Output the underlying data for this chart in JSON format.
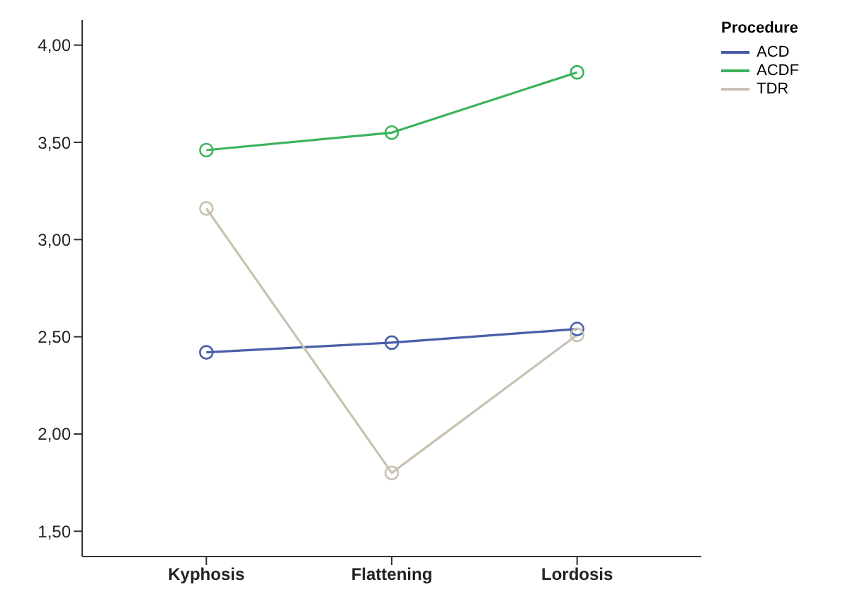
{
  "chart_data": {
    "type": "line",
    "categories": [
      "Kyphosis",
      "Flattening",
      "Lordosis"
    ],
    "series": [
      {
        "name": "ACD",
        "color": "#4a5ea8",
        "values": [
          2.42,
          2.47,
          2.54
        ]
      },
      {
        "name": "ACDF",
        "color": "#3cb35a",
        "values": [
          3.46,
          3.55,
          3.86
        ]
      },
      {
        "name": "TDR",
        "color": "#c9c2b2",
        "values": [
          3.16,
          1.8,
          2.51
        ]
      }
    ],
    "legend_title": "Procedure",
    "legend": "top right",
    "marker": "circle",
    "grid": false,
    "ylim": [
      1.37,
      4.13
    ],
    "yticks": [
      {
        "value": 1.5,
        "label": "1,50"
      },
      {
        "value": 2,
        "label": "2,00"
      },
      {
        "value": 2.5,
        "label": "2,50"
      },
      {
        "value": 3,
        "label": "3,00"
      },
      {
        "value": 3.5,
        "label": "3,50"
      },
      {
        "value": 4,
        "label": "4,00"
      }
    ]
  }
}
